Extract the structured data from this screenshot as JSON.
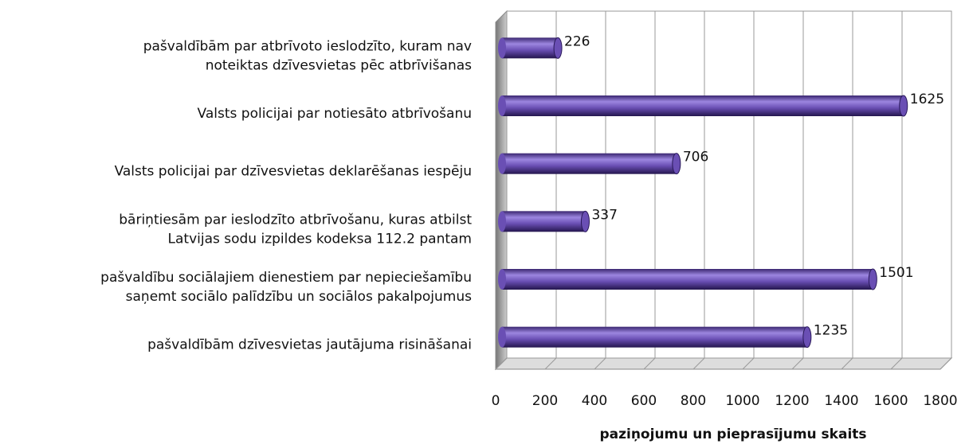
{
  "chart_data": {
    "type": "bar",
    "categories": [
      "pašvaldībām par atbrīvoto ieslodzīto, kuram nav\nnoteiktas dzīvesvietas pēc atbrīvišanas",
      "Valsts policijai par notiesāto atbrīvošanu",
      "Valsts policijai par dzīvesvietas deklarēšanas iespēju",
      "bāriņtiesām par ieslodzīto atbrīvošanu, kuras atbilst\nLatvijas sodu izpildes kodeksa 112.2 pantam",
      "pašvaldību sociālajiem dienestiem par nepieciešamību\nsaņemt sociālo palīdzību un sociālos pakalpojumus",
      "pašvaldībām dzīvesvietas jautājuma risināšanai"
    ],
    "values": [
      226,
      1625,
      706,
      337,
      1501,
      1235
    ],
    "color": "#6a4fb4",
    "xlabel": "paziņojumu un pieprasījumu skaits",
    "xlim": [
      0,
      1800
    ],
    "xticks": [
      0,
      200,
      400,
      600,
      800,
      1000,
      1200,
      1400,
      1600,
      1800
    ],
    "grid": true
  }
}
